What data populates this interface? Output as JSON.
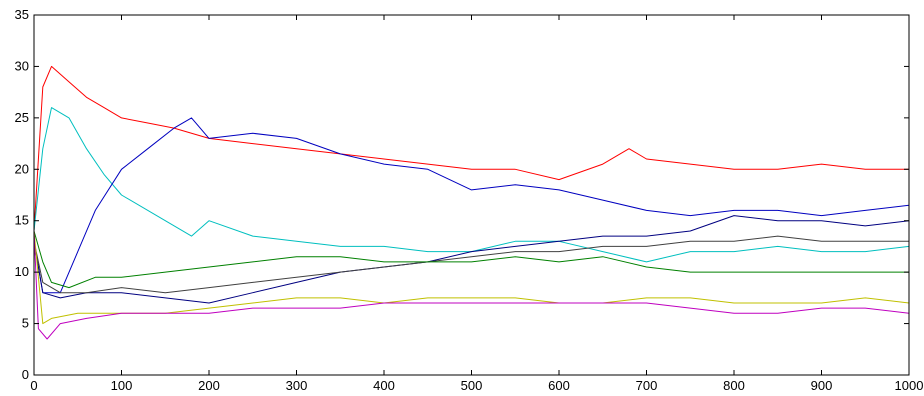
{
  "chart_data": {
    "type": "line",
    "title": "",
    "xlabel": "",
    "ylabel": "",
    "xlim": [
      0,
      1000
    ],
    "ylim": [
      0,
      35
    ],
    "grid": false,
    "legend": "none",
    "x_ticks": [
      0,
      100,
      200,
      300,
      400,
      500,
      600,
      700,
      800,
      900,
      1000
    ],
    "x_tick_labels": [
      "0",
      "100",
      "200",
      "300",
      "400",
      "500",
      "600",
      "700",
      "800",
      "900",
      "1000"
    ],
    "y_ticks": [
      0,
      5,
      10,
      15,
      20,
      25,
      30,
      35
    ],
    "y_tick_labels": [
      "0",
      "5",
      "10",
      "15",
      "20",
      "25",
      "30",
      "35"
    ],
    "series": [
      {
        "color": "#ff0000",
        "x": [
          0,
          10,
          20,
          40,
          60,
          80,
          100,
          130,
          160,
          200,
          250,
          300,
          350,
          400,
          450,
          500,
          550,
          600,
          650,
          680,
          700,
          750,
          800,
          850,
          900,
          950,
          1000
        ],
        "y": [
          14,
          28,
          30,
          28.5,
          27,
          26,
          25,
          24.5,
          24,
          23,
          22.5,
          22,
          21.5,
          21,
          20.5,
          20,
          20,
          19,
          20.5,
          22,
          21,
          20.5,
          20,
          20,
          20.5,
          20,
          20
        ]
      },
      {
        "color": "#00bfbf",
        "x": [
          0,
          10,
          20,
          40,
          60,
          80,
          100,
          150,
          180,
          200,
          250,
          300,
          350,
          400,
          450,
          500,
          550,
          600,
          650,
          700,
          750,
          800,
          850,
          900,
          950,
          1000
        ],
        "y": [
          14,
          22,
          26,
          25,
          22,
          19.5,
          17.5,
          15,
          13.5,
          15,
          13.5,
          13,
          12.5,
          12.5,
          12,
          12,
          13,
          13,
          12,
          11,
          12,
          12,
          12.5,
          12,
          12,
          12.5
        ]
      },
      {
        "color": "#0000bf",
        "x": [
          0,
          10,
          30,
          50,
          70,
          100,
          130,
          160,
          180,
          200,
          250,
          300,
          350,
          400,
          450,
          500,
          550,
          600,
          650,
          700,
          750,
          800,
          850,
          900,
          950,
          1000
        ],
        "y": [
          13,
          8,
          8,
          12,
          16,
          20,
          22,
          24,
          25,
          23,
          23.5,
          23,
          21.5,
          20.5,
          20,
          18,
          18.5,
          18,
          17,
          16,
          15.5,
          16,
          16,
          15.5,
          16,
          16.5
        ]
      },
      {
        "color": "#000080",
        "x": [
          0,
          10,
          30,
          60,
          100,
          150,
          200,
          250,
          300,
          350,
          400,
          450,
          500,
          550,
          600,
          650,
          700,
          750,
          800,
          850,
          900,
          950,
          1000
        ],
        "y": [
          13,
          8,
          7.5,
          8,
          8,
          7.5,
          7,
          8,
          9,
          10,
          10.5,
          11,
          12,
          12.5,
          13,
          13.5,
          13.5,
          14,
          15.5,
          15,
          15,
          14.5,
          15
        ]
      },
      {
        "color": "#404040",
        "x": [
          0,
          10,
          30,
          60,
          100,
          150,
          200,
          250,
          300,
          350,
          400,
          450,
          500,
          550,
          600,
          650,
          700,
          750,
          800,
          850,
          900,
          950,
          1000
        ],
        "y": [
          13,
          9,
          8,
          8,
          8.5,
          8,
          8.5,
          9,
          9.5,
          10,
          10.5,
          11,
          11.5,
          12,
          12,
          12.5,
          12.5,
          13,
          13,
          13.5,
          13,
          13,
          13
        ]
      },
      {
        "color": "#008000",
        "x": [
          0,
          10,
          20,
          40,
          70,
          100,
          150,
          200,
          250,
          300,
          350,
          400,
          450,
          500,
          550,
          600,
          650,
          700,
          750,
          800,
          850,
          900,
          950,
          1000
        ],
        "y": [
          14,
          11,
          9,
          8.5,
          9.5,
          9.5,
          10,
          10.5,
          11,
          11.5,
          11.5,
          11,
          11,
          11,
          11.5,
          11,
          11.5,
          10.5,
          10,
          10,
          10,
          10,
          10,
          10
        ]
      },
      {
        "color": "#c0c000",
        "x": [
          0,
          10,
          20,
          50,
          100,
          150,
          200,
          250,
          300,
          350,
          400,
          450,
          500,
          550,
          600,
          650,
          700,
          750,
          800,
          850,
          900,
          950,
          1000
        ],
        "y": [
          14,
          5,
          5.5,
          6,
          6,
          6,
          6.5,
          7,
          7.5,
          7.5,
          7,
          7.5,
          7.5,
          7.5,
          7,
          7,
          7.5,
          7.5,
          7,
          7,
          7,
          7.5,
          7
        ]
      },
      {
        "color": "#bf00bf",
        "x": [
          0,
          5,
          15,
          30,
          60,
          100,
          150,
          200,
          250,
          300,
          350,
          400,
          450,
          500,
          550,
          600,
          650,
          700,
          750,
          800,
          850,
          900,
          950,
          1000
        ],
        "y": [
          14,
          4.5,
          3.5,
          5,
          5.5,
          6,
          6,
          6,
          6.5,
          6.5,
          6.5,
          7,
          7,
          7,
          7,
          7,
          7,
          7,
          6.5,
          6,
          6,
          6.5,
          6.5,
          6
        ]
      }
    ]
  }
}
